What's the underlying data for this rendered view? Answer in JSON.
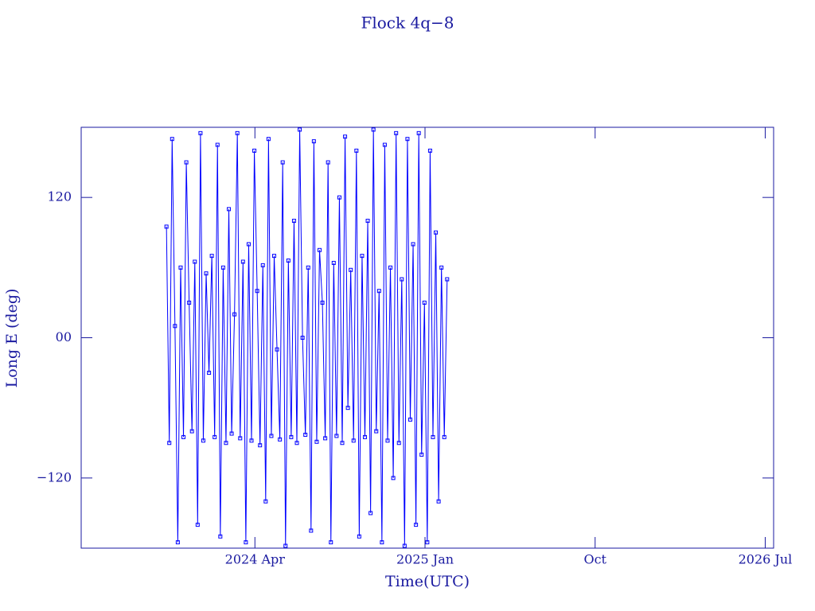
{
  "chart_data": {
    "type": "line",
    "title": "Flock 4q−8",
    "x_label": "Time(UTC)",
    "y_label": "Long E (deg)",
    "xlim": [
      2023.484,
      2026.537
    ],
    "ylim": [
      -180,
      180
    ],
    "xticks": [
      {
        "value": 2024.25,
        "label": "2024 Apr"
      },
      {
        "value": 2025.0,
        "label": "2025 Jan"
      },
      {
        "value": 2025.75,
        "label": "Oct"
      },
      {
        "value": 2026.5,
        "label": "2026 Jul"
      }
    ],
    "yticks": [
      {
        "value": -120,
        "label": "−120"
      },
      {
        "value": 0,
        "label": "00"
      },
      120
    ],
    "color": "#0000ff",
    "x": [
      2023.86,
      2023.8725,
      2023.885,
      2023.8975,
      2023.91,
      2023.9225,
      2023.935,
      2023.9475,
      2023.96,
      2023.9725,
      2023.985,
      2023.9975,
      2024.01,
      2024.0225,
      2024.035,
      2024.0475,
      2024.06,
      2024.0725,
      2024.085,
      2024.0975,
      2024.11,
      2024.1225,
      2024.135,
      2024.1475,
      2024.16,
      2024.1725,
      2024.185,
      2024.1975,
      2024.21,
      2024.2225,
      2024.235,
      2024.2475,
      2024.26,
      2024.2725,
      2024.285,
      2024.2975,
      2024.31,
      2024.3225,
      2024.335,
      2024.3475,
      2024.36,
      2024.3725,
      2024.385,
      2024.3975,
      2024.41,
      2024.4225,
      2024.435,
      2024.4475,
      2024.46,
      2024.4725,
      2024.485,
      2024.4975,
      2024.51,
      2024.5225,
      2024.535,
      2024.5475,
      2024.56,
      2024.5725,
      2024.585,
      2024.5975,
      2024.61,
      2024.6225,
      2024.635,
      2024.6475,
      2024.66,
      2024.6725,
      2024.685,
      2024.6975,
      2024.71,
      2024.7225,
      2024.735,
      2024.7475,
      2024.76,
      2024.7725,
      2024.785,
      2024.7975,
      2024.81,
      2024.8225,
      2024.835,
      2024.8475,
      2024.86,
      2024.8725,
      2024.885,
      2024.8975,
      2024.91,
      2024.9225,
      2024.935,
      2024.9475,
      2024.96,
      2024.9725,
      2024.985,
      2024.9975,
      2025.01,
      2025.0225,
      2025.035,
      2025.0475,
      2025.06,
      2025.0725,
      2025.085,
      2025.0975
    ],
    "values": [
      95,
      -90,
      170,
      10,
      -175,
      60,
      -85,
      150,
      30,
      -80,
      65,
      -160,
      175,
      -88,
      55,
      -30,
      70,
      -85,
      165,
      -170,
      60,
      -90,
      110,
      -82,
      20,
      175,
      -86,
      65,
      -175,
      80,
      -88,
      160,
      40,
      -92,
      62,
      -140,
      170,
      -84,
      70,
      -10,
      -87,
      150,
      -178,
      66,
      -85,
      100,
      -90,
      178,
      0,
      -83,
      60,
      -165,
      168,
      -89,
      75,
      30,
      -86,
      150,
      -175,
      64,
      -84,
      120,
      -90,
      172,
      -60,
      58,
      -88,
      160,
      -170,
      70,
      -85,
      100,
      -150,
      178,
      -80,
      40,
      -175,
      165,
      -88,
      60,
      -120,
      175,
      -90,
      50,
      -178,
      170,
      -70,
      80,
      -160,
      175,
      -100,
      30,
      -175,
      160,
      -85,
      90,
      -140,
      60,
      -85,
      50
    ]
  }
}
